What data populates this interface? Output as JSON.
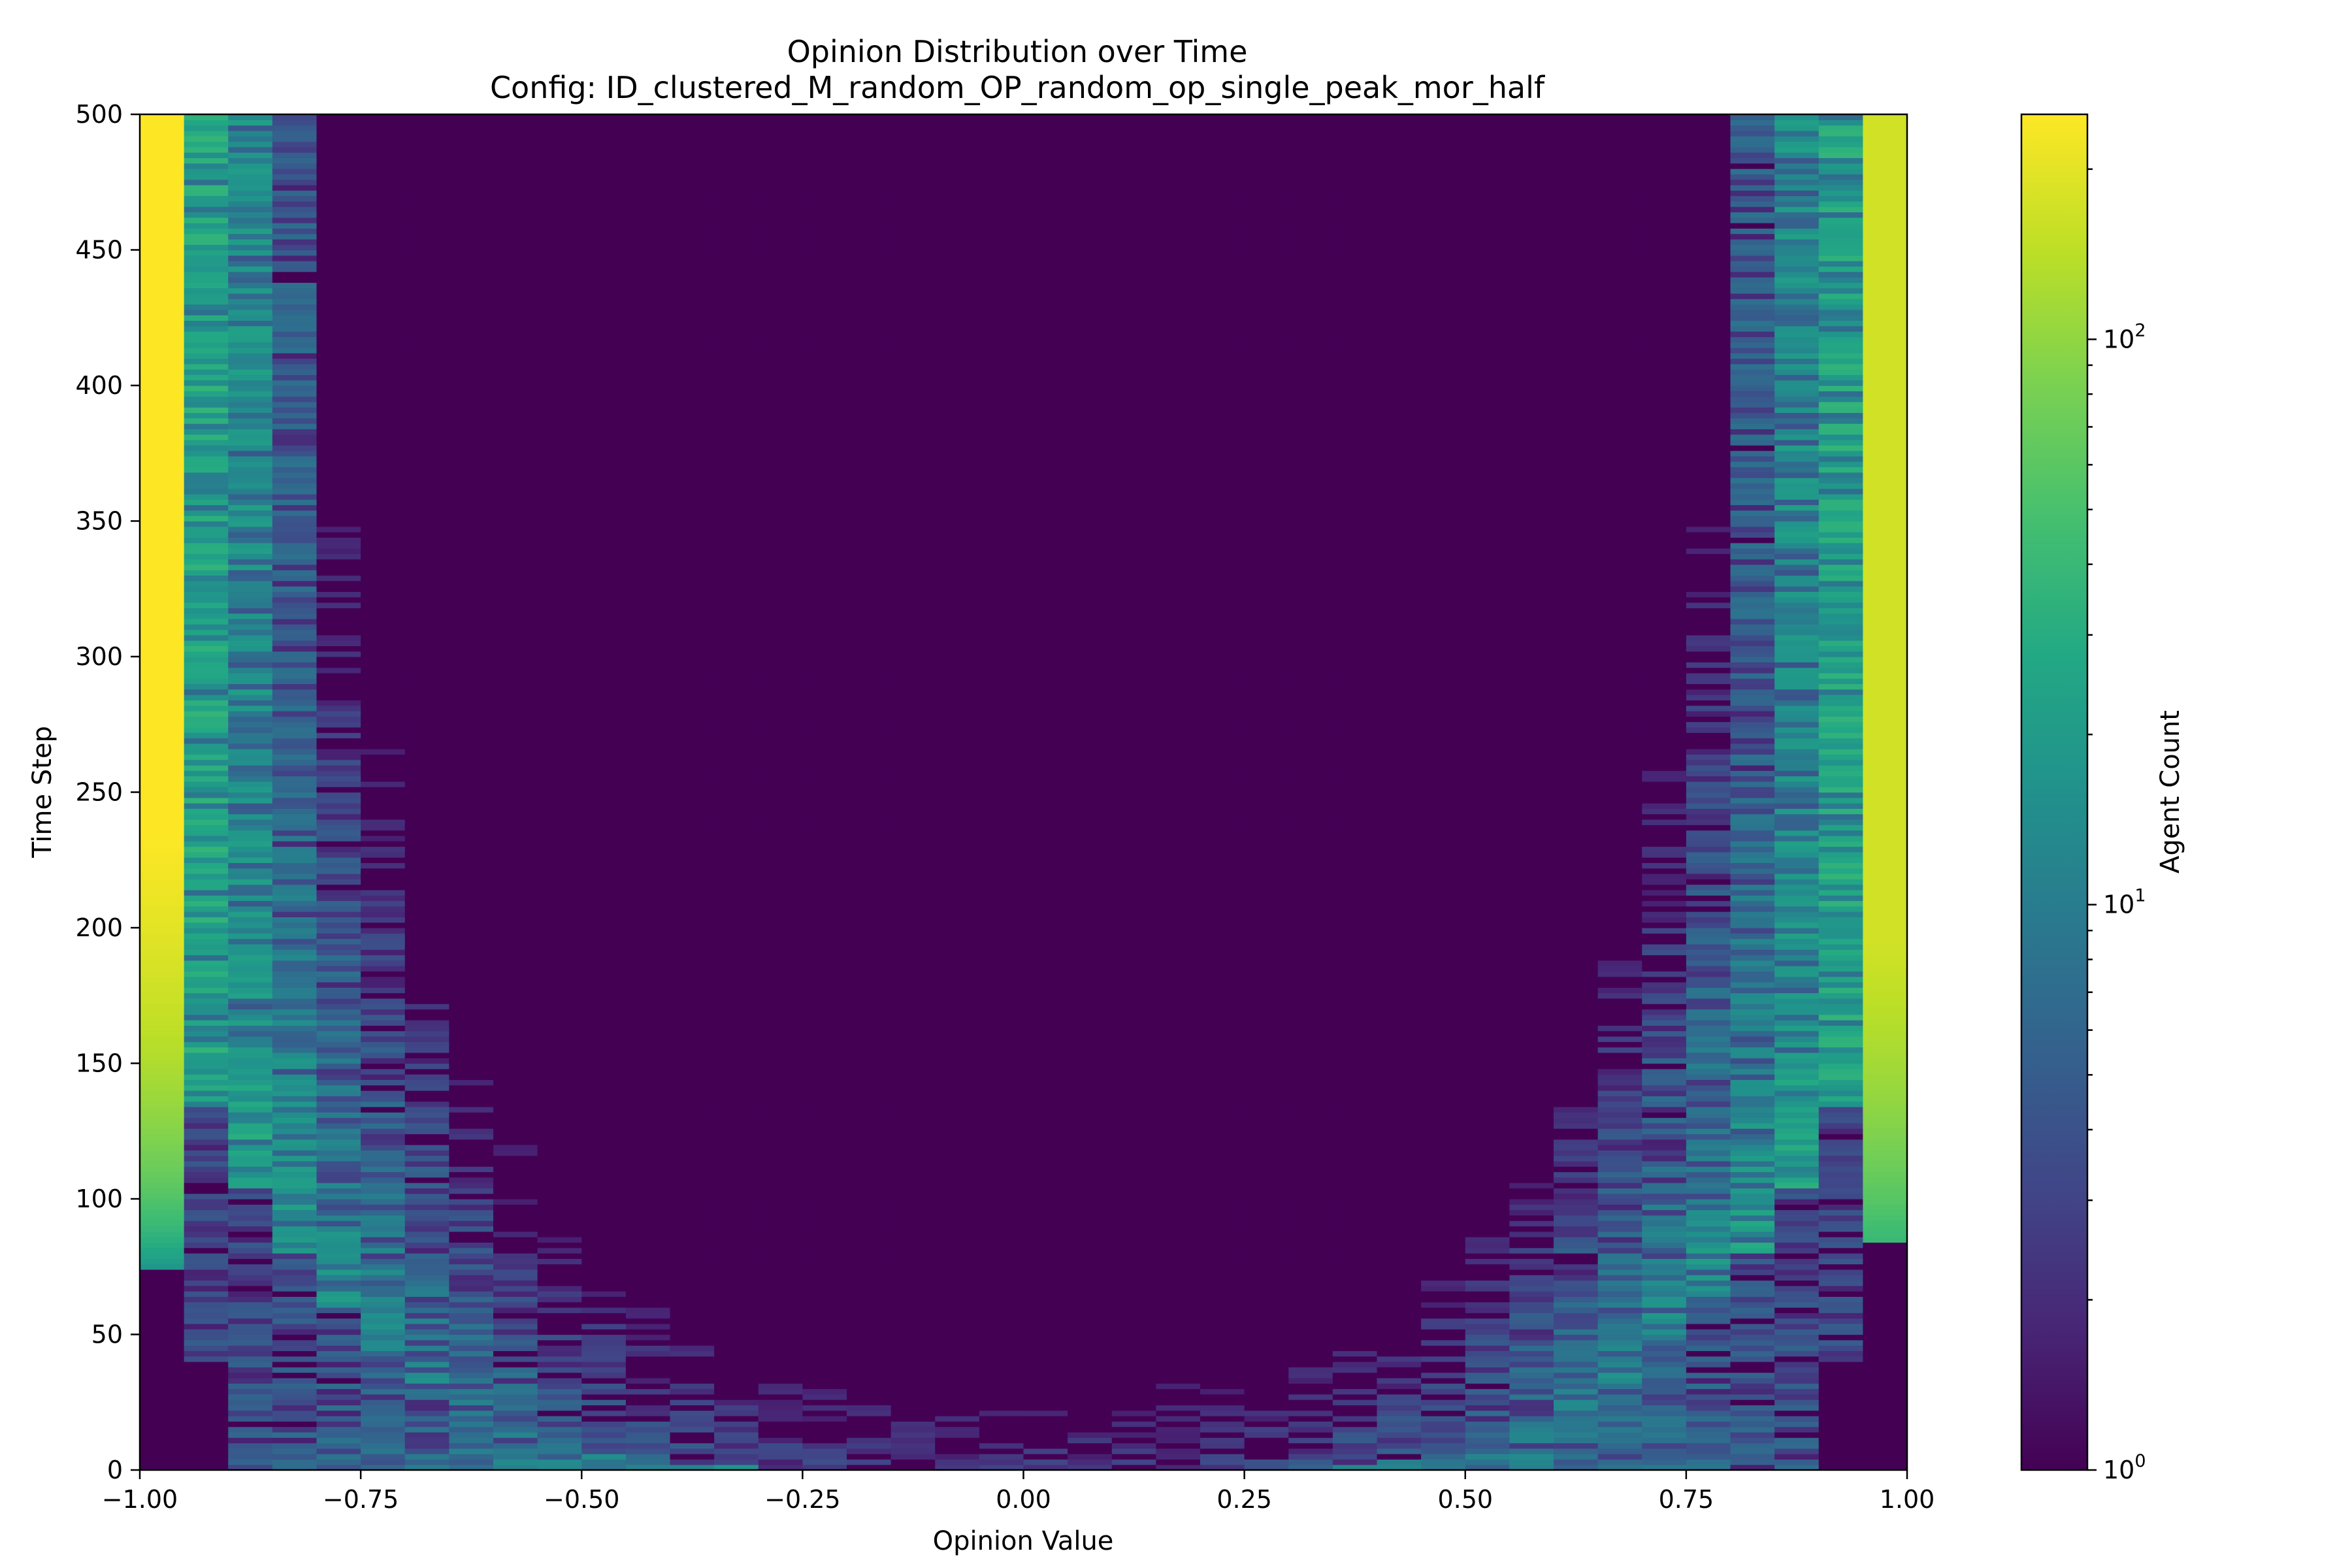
{
  "chart_data": {
    "type": "heatmap",
    "title": "Opinion Distribution over Time",
    "subtitle": "Config: ID_clustered_M_random_OP_random_op_single_peak_mor_half",
    "xlabel": "Opinion Value",
    "ylabel": "Time Step",
    "xlim": [
      -1.0,
      1.0
    ],
    "ylim": [
      0,
      500
    ],
    "x_ticks": [
      "−1.00",
      "−0.75",
      "−0.50",
      "−0.25",
      "0.00",
      "0.25",
      "0.50",
      "0.75",
      "1.00"
    ],
    "x_tick_values": [
      -1.0,
      -0.75,
      -0.5,
      -0.25,
      0.0,
      0.25,
      0.5,
      0.75,
      1.0
    ],
    "y_ticks": [
      "0",
      "50",
      "100",
      "150",
      "200",
      "250",
      "300",
      "350",
      "400",
      "450",
      "500"
    ],
    "y_tick_values": [
      0,
      50,
      100,
      150,
      200,
      250,
      300,
      350,
      400,
      450,
      500
    ],
    "colormap": "viridis",
    "color_scale": "log",
    "colorbar": {
      "label": "Agent Count",
      "range": [
        1,
        250
      ],
      "ticks": [
        {
          "value": 1,
          "base": "10",
          "exp": "0"
        },
        {
          "value": 10,
          "base": "10",
          "exp": "1"
        },
        {
          "value": 100,
          "base": "10",
          "exp": "2"
        }
      ]
    },
    "bins": 40,
    "bin_edges_x": [
      -1.0,
      1.0
    ],
    "time_steps": 500,
    "dominant_bins": [
      {
        "opinion": -0.975,
        "count_after_t75": 250
      },
      {
        "opinion": 0.975,
        "count_after_t90": 170
      }
    ]
  }
}
